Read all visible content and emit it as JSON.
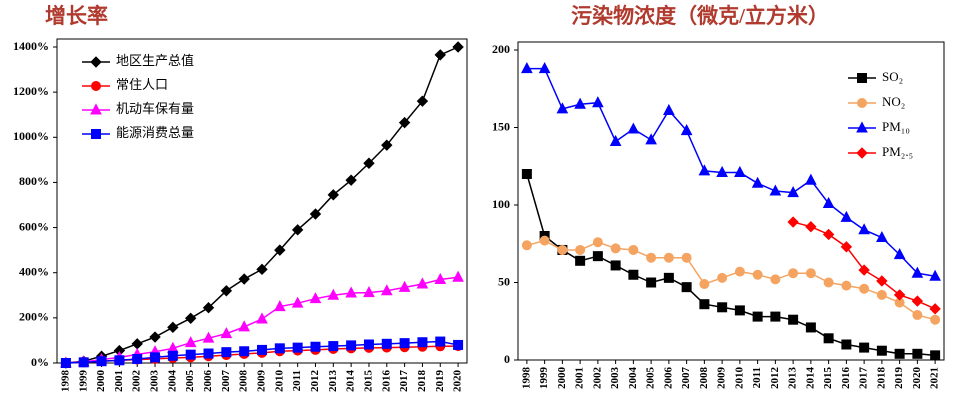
{
  "chart_data": [
    {
      "type": "line",
      "title": "增长率",
      "x": [
        1998,
        1999,
        2000,
        2001,
        2002,
        2003,
        2004,
        2005,
        2006,
        2007,
        2008,
        2009,
        2010,
        2011,
        2012,
        2013,
        2014,
        2015,
        2016,
        2017,
        2018,
        2019,
        2020
      ],
      "ylim": [
        0,
        1400
      ],
      "yticks": [
        {
          "value": 0,
          "label": "0%"
        },
        {
          "value": 200,
          "label": "200%"
        },
        {
          "value": 400,
          "label": "400%"
        },
        {
          "value": 600,
          "label": "600%"
        },
        {
          "value": 800,
          "label": "800%"
        },
        {
          "value": 1000,
          "label": "1000%"
        },
        {
          "value": 1200,
          "label": "1200%"
        },
        {
          "value": 1400,
          "label": "1400%"
        }
      ],
      "legend": "upper left",
      "series": [
        {
          "name": "地区生产总值",
          "color": "#000000",
          "marker": "diamond",
          "values": [
            0,
            8,
            30,
            55,
            85,
            115,
            158,
            198,
            245,
            320,
            372,
            415,
            500,
            590,
            660,
            745,
            810,
            885,
            965,
            1065,
            1160,
            1365,
            1400
          ]
        },
        {
          "name": "常住人口",
          "color": "#ff0000",
          "marker": "circle",
          "values": [
            0,
            3,
            8,
            12,
            15,
            18,
            22,
            25,
            30,
            35,
            40,
            45,
            52,
            55,
            58,
            62,
            65,
            67,
            68,
            70,
            72,
            74,
            75
          ]
        },
        {
          "name": "机动车保有量",
          "color": "#ff00ff",
          "marker": "triangle",
          "values": [
            0,
            5,
            15,
            25,
            38,
            50,
            65,
            90,
            110,
            130,
            160,
            195,
            250,
            265,
            285,
            300,
            310,
            312,
            320,
            335,
            350,
            370,
            380
          ]
        },
        {
          "name": "能源消费总量",
          "color": "#0000ff",
          "marker": "square",
          "values": [
            0,
            3,
            8,
            12,
            18,
            25,
            32,
            37,
            42,
            48,
            52,
            58,
            65,
            68,
            72,
            75,
            78,
            82,
            85,
            88,
            92,
            95,
            80
          ]
        }
      ]
    },
    {
      "type": "line",
      "title": "污染物浓度（微克/立方米）",
      "x": [
        1998,
        1999,
        2000,
        2001,
        2002,
        2003,
        2004,
        2005,
        2006,
        2007,
        2008,
        2009,
        2010,
        2011,
        2012,
        2013,
        2014,
        2015,
        2016,
        2017,
        2018,
        2019,
        2020,
        2021
      ],
      "ylim": [
        0,
        200
      ],
      "yticks": [
        0,
        50,
        100,
        150,
        200
      ],
      "legend": "upper right",
      "series": [
        {
          "name": "SO₂",
          "color": "#000000",
          "marker": "square",
          "values": [
            120,
            80,
            71,
            64,
            67,
            61,
            55,
            50,
            53,
            47,
            36,
            34,
            32,
            28,
            28,
            26,
            21,
            14,
            10,
            8,
            6,
            4,
            4,
            3
          ]
        },
        {
          "name": "NO₂",
          "color": "#f4a460",
          "marker": "circle",
          "values": [
            74,
            77,
            71,
            71,
            76,
            72,
            71,
            66,
            66,
            66,
            49,
            53,
            57,
            55,
            52,
            56,
            56,
            50,
            48,
            46,
            42,
            37,
            29,
            26
          ]
        },
        {
          "name": "PM₁₀",
          "color": "#0000ff",
          "marker": "triangle",
          "values": [
            188,
            188,
            162,
            165,
            166,
            141,
            149,
            142,
            161,
            148,
            122,
            121,
            121,
            114,
            109,
            108,
            116,
            101,
            92,
            84,
            79,
            68,
            56,
            54
          ]
        },
        {
          "name": "PM₂.₅",
          "color": "#ff0000",
          "marker": "diamond",
          "values": [
            null,
            null,
            null,
            null,
            null,
            null,
            null,
            null,
            null,
            null,
            null,
            null,
            null,
            null,
            null,
            89,
            86,
            81,
            73,
            58,
            51,
            42,
            38,
            33
          ]
        }
      ]
    }
  ]
}
